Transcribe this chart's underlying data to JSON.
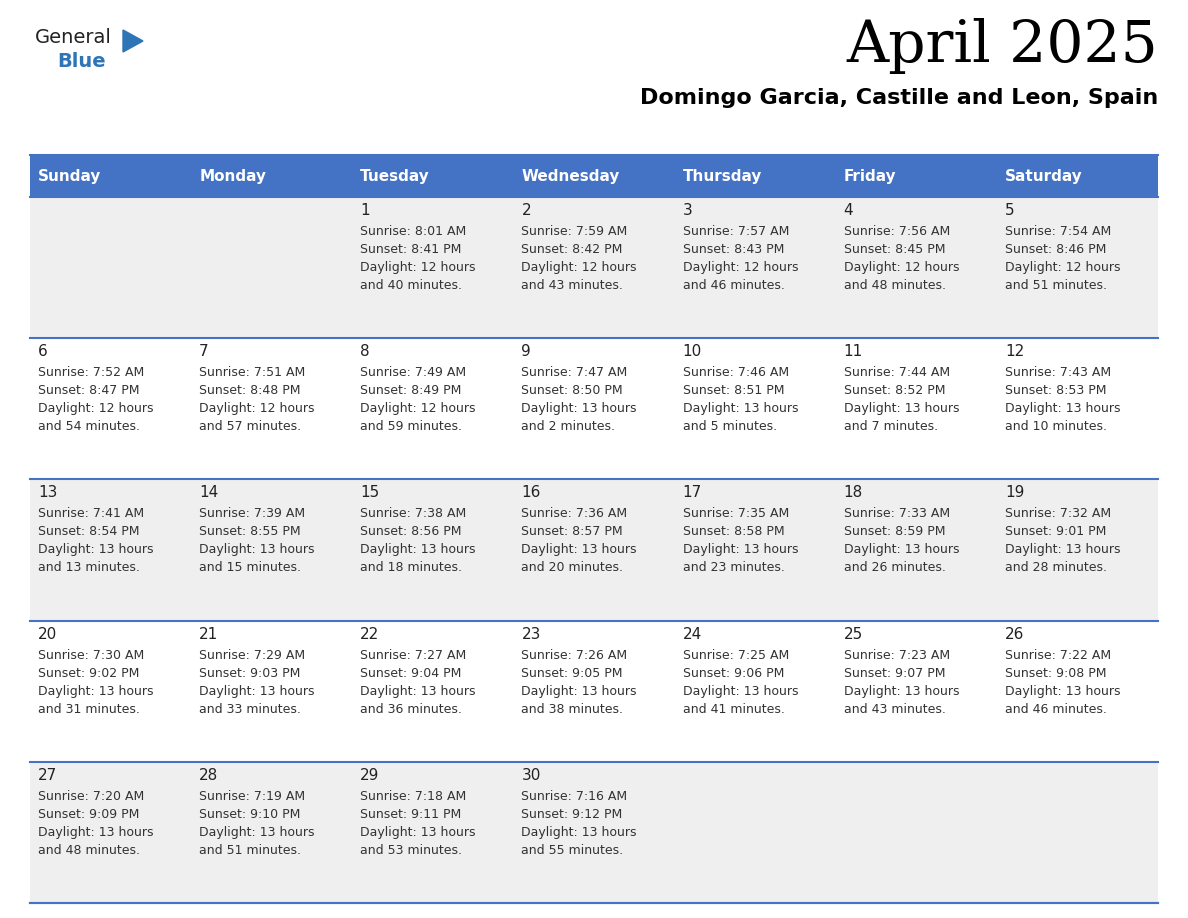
{
  "title": "April 2025",
  "subtitle": "Domingo Garcia, Castille and Leon, Spain",
  "days_of_week": [
    "Sunday",
    "Monday",
    "Tuesday",
    "Wednesday",
    "Thursday",
    "Friday",
    "Saturday"
  ],
  "header_bg": "#4472C4",
  "header_text": "#FFFFFF",
  "row_bg_odd": "#EFEFEF",
  "row_bg_even": "#FFFFFF",
  "cell_text_color": "#333333",
  "day_num_color": "#222222",
  "line_color": "#4472C4",
  "calendar_data": [
    [
      {
        "day": null,
        "sunrise": null,
        "sunset": null,
        "daylight": null
      },
      {
        "day": null,
        "sunrise": null,
        "sunset": null,
        "daylight": null
      },
      {
        "day": 1,
        "sunrise": "8:01 AM",
        "sunset": "8:41 PM",
        "daylight": "12 hours\nand 40 minutes."
      },
      {
        "day": 2,
        "sunrise": "7:59 AM",
        "sunset": "8:42 PM",
        "daylight": "12 hours\nand 43 minutes."
      },
      {
        "day": 3,
        "sunrise": "7:57 AM",
        "sunset": "8:43 PM",
        "daylight": "12 hours\nand 46 minutes."
      },
      {
        "day": 4,
        "sunrise": "7:56 AM",
        "sunset": "8:45 PM",
        "daylight": "12 hours\nand 48 minutes."
      },
      {
        "day": 5,
        "sunrise": "7:54 AM",
        "sunset": "8:46 PM",
        "daylight": "12 hours\nand 51 minutes."
      }
    ],
    [
      {
        "day": 6,
        "sunrise": "7:52 AM",
        "sunset": "8:47 PM",
        "daylight": "12 hours\nand 54 minutes."
      },
      {
        "day": 7,
        "sunrise": "7:51 AM",
        "sunset": "8:48 PM",
        "daylight": "12 hours\nand 57 minutes."
      },
      {
        "day": 8,
        "sunrise": "7:49 AM",
        "sunset": "8:49 PM",
        "daylight": "12 hours\nand 59 minutes."
      },
      {
        "day": 9,
        "sunrise": "7:47 AM",
        "sunset": "8:50 PM",
        "daylight": "13 hours\nand 2 minutes."
      },
      {
        "day": 10,
        "sunrise": "7:46 AM",
        "sunset": "8:51 PM",
        "daylight": "13 hours\nand 5 minutes."
      },
      {
        "day": 11,
        "sunrise": "7:44 AM",
        "sunset": "8:52 PM",
        "daylight": "13 hours\nand 7 minutes."
      },
      {
        "day": 12,
        "sunrise": "7:43 AM",
        "sunset": "8:53 PM",
        "daylight": "13 hours\nand 10 minutes."
      }
    ],
    [
      {
        "day": 13,
        "sunrise": "7:41 AM",
        "sunset": "8:54 PM",
        "daylight": "13 hours\nand 13 minutes."
      },
      {
        "day": 14,
        "sunrise": "7:39 AM",
        "sunset": "8:55 PM",
        "daylight": "13 hours\nand 15 minutes."
      },
      {
        "day": 15,
        "sunrise": "7:38 AM",
        "sunset": "8:56 PM",
        "daylight": "13 hours\nand 18 minutes."
      },
      {
        "day": 16,
        "sunrise": "7:36 AM",
        "sunset": "8:57 PM",
        "daylight": "13 hours\nand 20 minutes."
      },
      {
        "day": 17,
        "sunrise": "7:35 AM",
        "sunset": "8:58 PM",
        "daylight": "13 hours\nand 23 minutes."
      },
      {
        "day": 18,
        "sunrise": "7:33 AM",
        "sunset": "8:59 PM",
        "daylight": "13 hours\nand 26 minutes."
      },
      {
        "day": 19,
        "sunrise": "7:32 AM",
        "sunset": "9:01 PM",
        "daylight": "13 hours\nand 28 minutes."
      }
    ],
    [
      {
        "day": 20,
        "sunrise": "7:30 AM",
        "sunset": "9:02 PM",
        "daylight": "13 hours\nand 31 minutes."
      },
      {
        "day": 21,
        "sunrise": "7:29 AM",
        "sunset": "9:03 PM",
        "daylight": "13 hours\nand 33 minutes."
      },
      {
        "day": 22,
        "sunrise": "7:27 AM",
        "sunset": "9:04 PM",
        "daylight": "13 hours\nand 36 minutes."
      },
      {
        "day": 23,
        "sunrise": "7:26 AM",
        "sunset": "9:05 PM",
        "daylight": "13 hours\nand 38 minutes."
      },
      {
        "day": 24,
        "sunrise": "7:25 AM",
        "sunset": "9:06 PM",
        "daylight": "13 hours\nand 41 minutes."
      },
      {
        "day": 25,
        "sunrise": "7:23 AM",
        "sunset": "9:07 PM",
        "daylight": "13 hours\nand 43 minutes."
      },
      {
        "day": 26,
        "sunrise": "7:22 AM",
        "sunset": "9:08 PM",
        "daylight": "13 hours\nand 46 minutes."
      }
    ],
    [
      {
        "day": 27,
        "sunrise": "7:20 AM",
        "sunset": "9:09 PM",
        "daylight": "13 hours\nand 48 minutes."
      },
      {
        "day": 28,
        "sunrise": "7:19 AM",
        "sunset": "9:10 PM",
        "daylight": "13 hours\nand 51 minutes."
      },
      {
        "day": 29,
        "sunrise": "7:18 AM",
        "sunset": "9:11 PM",
        "daylight": "13 hours\nand 53 minutes."
      },
      {
        "day": 30,
        "sunrise": "7:16 AM",
        "sunset": "9:12 PM",
        "daylight": "13 hours\nand 55 minutes."
      },
      {
        "day": null,
        "sunrise": null,
        "sunset": null,
        "daylight": null
      },
      {
        "day": null,
        "sunrise": null,
        "sunset": null,
        "daylight": null
      },
      {
        "day": null,
        "sunrise": null,
        "sunset": null,
        "daylight": null
      }
    ]
  ],
  "logo_color_general": "#222222",
  "logo_color_blue": "#2E75B6",
  "logo_triangle_color": "#2E75B6",
  "title_fontsize": 42,
  "subtitle_fontsize": 16,
  "header_fontsize": 11,
  "cell_day_fontsize": 11,
  "cell_info_fontsize": 9
}
